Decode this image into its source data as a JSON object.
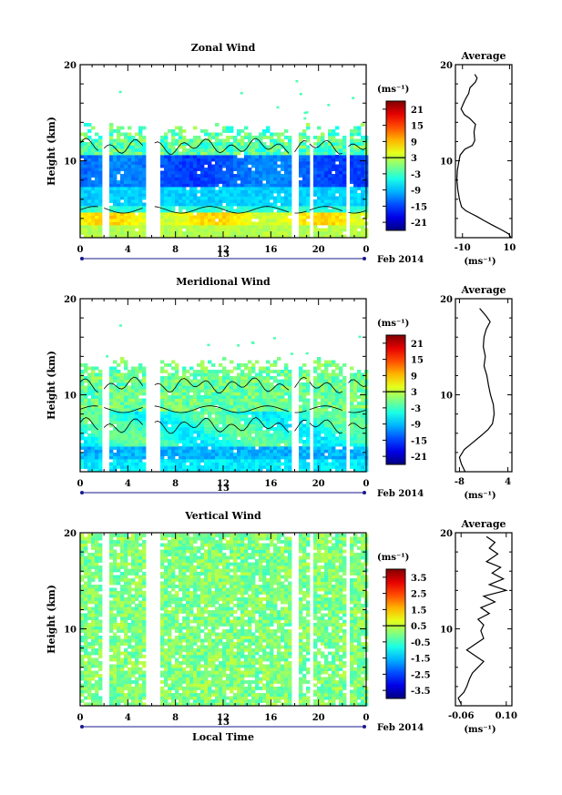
{
  "figure": {
    "date_label": "Feb 2014",
    "x_axis_title": "Local Time",
    "y_axis_title": "Height (km)",
    "unit_label": "(ms⁻¹)"
  },
  "chart_data": [
    {
      "type": "heatmap",
      "title": "Zonal Wind",
      "xlabel": "",
      "ylabel": "Height (km)",
      "x_ticks": [
        "0",
        "4",
        "8",
        "12",
        "16",
        "20",
        "0"
      ],
      "day_label": "13",
      "y_ticks": [
        "20",
        "10"
      ],
      "xlim": [
        0,
        24
      ],
      "ylim": [
        2,
        20
      ],
      "colorbar": {
        "unit": "(ms⁻¹)",
        "ticks": [
          "21",
          "15",
          "9",
          "3",
          "-3",
          "-9",
          "-15",
          "-21"
        ],
        "range": [
          -24,
          24
        ]
      },
      "data_gaps_hours": [
        [
          1.6,
          2.2
        ],
        [
          5.3,
          6.5
        ],
        [
          17.6,
          18.2
        ],
        [
          19.1,
          19.5
        ],
        [
          22.2,
          22.6
        ]
      ],
      "profile": {
        "title": "Average",
        "x_ticks": [
          "-10",
          "10"
        ],
        "xlim": [
          -13,
          11
        ],
        "xlabel": "(ms⁻¹)",
        "y_ticks": [
          "20",
          "10"
        ],
        "points": [
          [
            -4.8,
            19.0
          ],
          [
            -3.8,
            18.6
          ],
          [
            -4.5,
            18.2
          ],
          [
            -6.8,
            17.6
          ],
          [
            -7.4,
            17.0
          ],
          [
            -9.0,
            16.3
          ],
          [
            -10.6,
            15.4
          ],
          [
            -9.2,
            14.8
          ],
          [
            -6.9,
            14.4
          ],
          [
            -4.5,
            13.8
          ],
          [
            -5.1,
            13.0
          ],
          [
            -4.8,
            12.1
          ],
          [
            -5.8,
            11.6
          ],
          [
            -9.0,
            11.2
          ],
          [
            -11.0,
            10.6
          ],
          [
            -11.5,
            10.0
          ],
          [
            -12.2,
            9.0
          ],
          [
            -12.4,
            8.0
          ],
          [
            -12.0,
            7.0
          ],
          [
            -11.3,
            6.0
          ],
          [
            -10.4,
            5.2
          ],
          [
            -8.6,
            4.8
          ],
          [
            -6.2,
            4.5
          ],
          [
            -3.8,
            4.2
          ],
          [
            -1.0,
            3.8
          ],
          [
            2.8,
            3.3
          ],
          [
            6.8,
            2.8
          ],
          [
            9.6,
            2.4
          ],
          [
            10.6,
            2.0
          ]
        ]
      }
    },
    {
      "type": "heatmap",
      "title": "Meridional Wind",
      "xlabel": "",
      "ylabel": "Height (km)",
      "x_ticks": [
        "0",
        "4",
        "8",
        "12",
        "16",
        "20",
        "0"
      ],
      "day_label": "13",
      "y_ticks": [
        "20",
        "10"
      ],
      "xlim": [
        0,
        24
      ],
      "ylim": [
        2,
        20
      ],
      "colorbar": {
        "unit": "(ms⁻¹)",
        "ticks": [
          "21",
          "15",
          "9",
          "3",
          "-3",
          "-9",
          "-15",
          "-21"
        ],
        "range": [
          -24,
          24
        ]
      },
      "data_gaps_hours": [
        [
          1.6,
          2.2
        ],
        [
          5.3,
          6.5
        ],
        [
          17.6,
          18.2
        ],
        [
          19.1,
          19.5
        ],
        [
          22.2,
          22.6
        ]
      ],
      "profile": {
        "title": "Average",
        "x_ticks": [
          "-8",
          "4"
        ],
        "xlim": [
          -9,
          5
        ],
        "xlabel": "(ms⁻¹)",
        "y_ticks": [
          "20",
          "10"
        ],
        "points": [
          [
            -3.0,
            19.0
          ],
          [
            -2.2,
            18.6
          ],
          [
            -1.4,
            18.2
          ],
          [
            -0.4,
            17.6
          ],
          [
            -1.4,
            16.8
          ],
          [
            -1.9,
            16.0
          ],
          [
            -2.1,
            15.0
          ],
          [
            -1.6,
            14.0
          ],
          [
            -1.9,
            13.0
          ],
          [
            -1.2,
            12.0
          ],
          [
            -0.8,
            11.0
          ],
          [
            -0.3,
            10.0
          ],
          [
            0.4,
            9.0
          ],
          [
            0.6,
            8.0
          ],
          [
            0.2,
            7.0
          ],
          [
            -0.9,
            6.4
          ],
          [
            -2.5,
            5.8
          ],
          [
            -4.8,
            5.0
          ],
          [
            -6.8,
            4.3
          ],
          [
            -8.0,
            3.5
          ],
          [
            -7.5,
            2.8
          ],
          [
            -6.6,
            2.0
          ]
        ]
      }
    },
    {
      "type": "heatmap",
      "title": "Vertical Wind",
      "xlabel": "Local Time",
      "ylabel": "Height (km)",
      "x_ticks": [
        "0",
        "4",
        "8",
        "12",
        "16",
        "20",
        "0"
      ],
      "day_label": "13",
      "y_ticks": [
        "20",
        "10"
      ],
      "xlim": [
        0,
        24
      ],
      "ylim": [
        2,
        20
      ],
      "colorbar": {
        "unit": "(ms⁻¹)",
        "ticks": [
          "3.5",
          "2.5",
          "1.5",
          "0.5",
          "-0.5",
          "-1.5",
          "-2.5",
          "-3.5"
        ],
        "range": [
          -4,
          4
        ]
      },
      "data_gaps_hours": [
        [
          1.6,
          2.2
        ],
        [
          5.3,
          6.5
        ],
        [
          17.6,
          18.2
        ],
        [
          19.1,
          19.5
        ],
        [
          22.2,
          22.6
        ]
      ],
      "profile": {
        "title": "Average",
        "x_ticks": [
          "-0.06",
          "0.10"
        ],
        "xlim": [
          -0.08,
          0.12
        ],
        "xlabel": "(ms⁻¹)",
        "y_ticks": [
          "20",
          "10"
        ],
        "points": [
          [
            0.03,
            19.6
          ],
          [
            0.06,
            19.0
          ],
          [
            0.04,
            18.4
          ],
          [
            0.07,
            17.8
          ],
          [
            0.03,
            17.0
          ],
          [
            0.08,
            16.4
          ],
          [
            0.05,
            15.8
          ],
          [
            0.09,
            15.2
          ],
          [
            0.04,
            14.6
          ],
          [
            0.1,
            14.0
          ],
          [
            0.02,
            13.4
          ],
          [
            0.06,
            12.8
          ],
          [
            0.01,
            12.2
          ],
          [
            0.04,
            11.6
          ],
          [
            0.0,
            11.0
          ],
          [
            0.02,
            10.4
          ],
          [
            0.01,
            9.8
          ],
          [
            0.02,
            9.0
          ],
          [
            -0.01,
            8.4
          ],
          [
            -0.04,
            7.8
          ],
          [
            -0.01,
            7.2
          ],
          [
            0.02,
            6.6
          ],
          [
            0.0,
            6.0
          ],
          [
            -0.02,
            5.4
          ],
          [
            -0.03,
            4.8
          ],
          [
            -0.04,
            4.0
          ],
          [
            -0.05,
            3.4
          ],
          [
            -0.07,
            2.8
          ],
          [
            -0.06,
            2.2
          ]
        ]
      }
    }
  ]
}
